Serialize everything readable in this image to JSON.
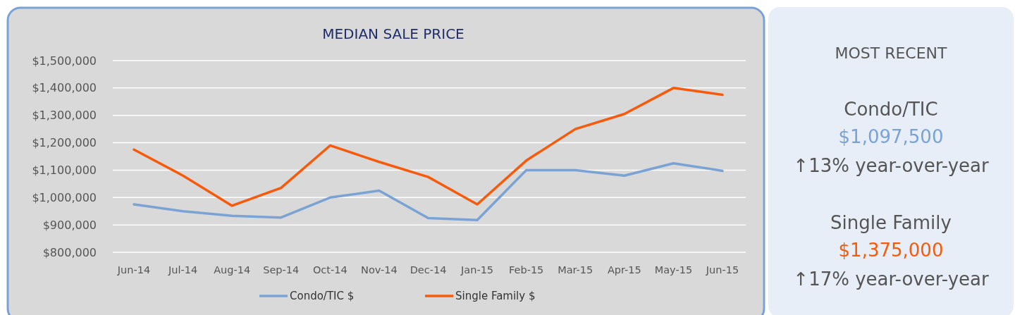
{
  "chart_data": {
    "type": "line",
    "title": "MEDIAN SALE PRICE",
    "categories": [
      "Jun-14",
      "Jul-14",
      "Aug-14",
      "Sep-14",
      "Oct-14",
      "Nov-14",
      "Dec-14",
      "Jan-15",
      "Feb-15",
      "Mar-15",
      "Apr-15",
      "May-15",
      "Jun-15"
    ],
    "series": [
      {
        "name": "Condo/TIC $",
        "color": "#7aa3d4",
        "values": [
          975000,
          950000,
          933000,
          927000,
          1000000,
          1025000,
          925000,
          918000,
          1100000,
          1100000,
          1080000,
          1125000,
          1097500
        ]
      },
      {
        "name": "Single Family $",
        "color": "#f65a0a",
        "values": [
          1175000,
          1080000,
          970000,
          1035000,
          1190000,
          1130000,
          1075000,
          975000,
          1135000,
          1250000,
          1305000,
          1400000,
          1375000
        ]
      }
    ],
    "ylim": [
      800000,
      1500000
    ],
    "yticks": [
      {
        "value": 800000,
        "label": "$800,000"
      },
      {
        "value": 900000,
        "label": "$900,000"
      },
      {
        "value": 1000000,
        "label": "$1,000,000"
      },
      {
        "value": 1100000,
        "label": "$1,100,000"
      },
      {
        "value": 1200000,
        "label": "$1,200,000"
      },
      {
        "value": 1300000,
        "label": "$1,300,000"
      },
      {
        "value": 1400000,
        "label": "$1,400,000"
      },
      {
        "value": 1500000,
        "label": "$1,500,000"
      }
    ],
    "grid": "y",
    "legend": "bottom",
    "marker": "none",
    "line_style": "solid",
    "annotations": [
      "MOST RECENT",
      "Condo/TIC",
      "$1,097,500",
      "↑13% year-over-year",
      "Single Family",
      "$1,375,000",
      "↑17% year-over-year"
    ]
  }
}
